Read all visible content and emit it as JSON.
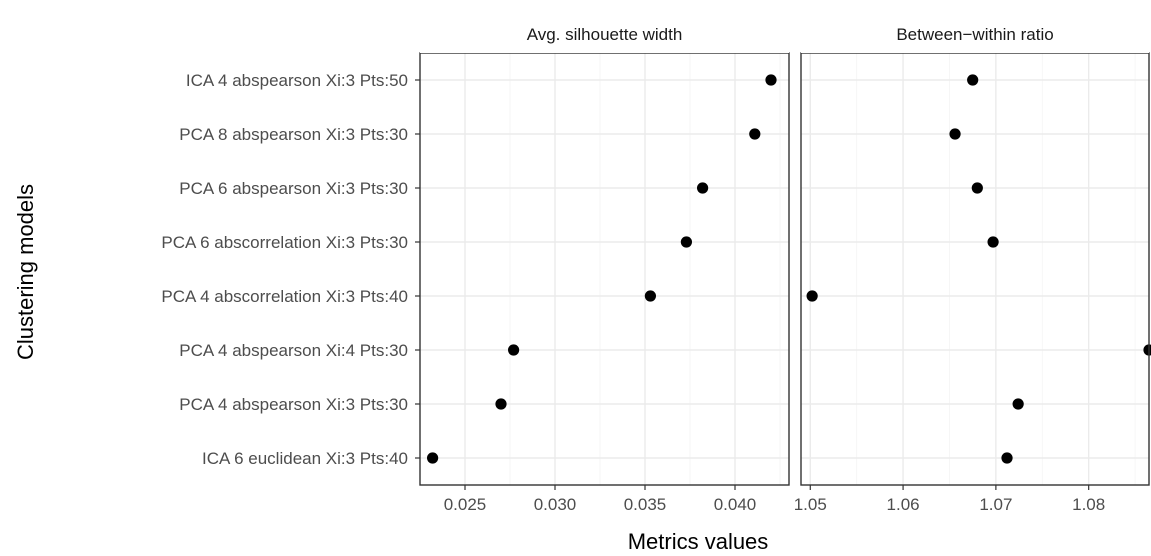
{
  "chart_data": {
    "type": "scatter",
    "xlabel": "Metrics values",
    "ylabel": "Clustering models",
    "categories": [
      "ICA 4 abspearson Xi:3 Pts:50",
      "PCA 8 abspearson Xi:3 Pts:30",
      "PCA 6 abspearson Xi:3 Pts:30",
      "PCA 6 abscorrelation Xi:3 Pts:30",
      "PCA 4 abscorrelation Xi:3 Pts:40",
      "PCA 4 abspearson Xi:4 Pts:30",
      "PCA 4 abspearson Xi:3 Pts:30",
      "ICA 6 euclidean Xi:3 Pts:40"
    ],
    "panels": [
      {
        "title": "Avg. silhouette width",
        "xlim": [
          0.0225,
          0.043
        ],
        "xticks": [
          0.025,
          0.03,
          0.035,
          0.04
        ],
        "xtick_labels": [
          "0.025",
          "0.030",
          "0.035",
          "0.040"
        ],
        "values": [
          0.042,
          0.0411,
          0.0382,
          0.0373,
          0.0353,
          0.0277,
          0.027,
          0.0232
        ]
      },
      {
        "title": "Between−within ratio",
        "xlim": [
          1.049,
          1.0865
        ],
        "xticks": [
          1.05,
          1.06,
          1.07,
          1.08
        ],
        "xtick_labels": [
          "1.05",
          "1.06",
          "1.07",
          "1.08"
        ],
        "values": [
          1.0675,
          1.0656,
          1.068,
          1.0697,
          1.0502,
          1.0865,
          1.0724,
          1.0712
        ]
      }
    ],
    "grid": true,
    "legend": "none"
  }
}
